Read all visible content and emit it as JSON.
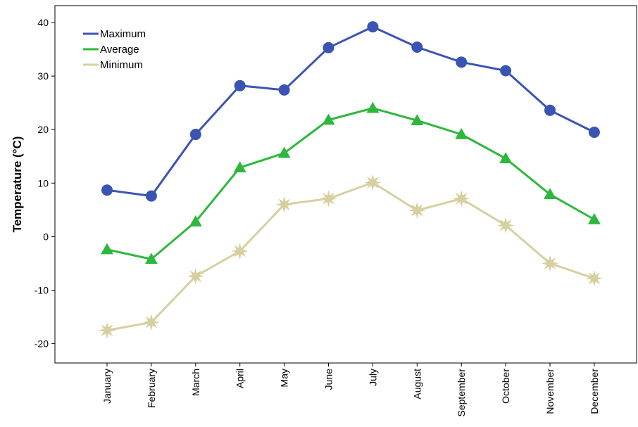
{
  "chart_data": {
    "type": "line",
    "title": "",
    "xlabel": "",
    "ylabel": "Temperature (°C)",
    "ylim": [
      -23,
      43
    ],
    "yticks": [
      40,
      30,
      20,
      10,
      0,
      -10,
      -20
    ],
    "grid": false,
    "legend_position": "top-left",
    "categories": [
      "January",
      "February",
      "March",
      "April",
      "May",
      "June",
      "July",
      "August",
      "September",
      "October",
      "November",
      "December"
    ],
    "series": [
      {
        "name": "Maximum",
        "color": "#3a54b4",
        "marker": "circle",
        "values": [
          8.7,
          7.6,
          19.1,
          28.2,
          27.4,
          35.3,
          39.2,
          35.4,
          32.6,
          31.0,
          23.6,
          19.5
        ]
      },
      {
        "name": "Average",
        "color": "#2db83d",
        "marker": "triangle",
        "values": [
          -2.4,
          -4.2,
          2.8,
          12.9,
          15.6,
          21.8,
          24.0,
          21.7,
          19.1,
          14.6,
          7.9,
          3.2
        ]
      },
      {
        "name": "Minimum",
        "color": "#d6d0a0",
        "marker": "star",
        "values": [
          -17.5,
          -16.0,
          -7.4,
          -2.7,
          6.0,
          7.1,
          10.1,
          4.9,
          7.1,
          2.1,
          -5.0,
          -7.8
        ]
      }
    ]
  }
}
